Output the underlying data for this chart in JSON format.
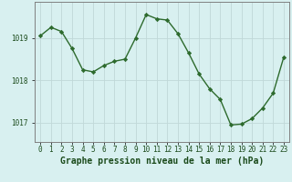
{
  "x": [
    0,
    1,
    2,
    3,
    4,
    5,
    6,
    7,
    8,
    9,
    10,
    11,
    12,
    13,
    14,
    15,
    16,
    17,
    18,
    19,
    20,
    21,
    22,
    23
  ],
  "y": [
    1019.05,
    1019.25,
    1019.15,
    1018.75,
    1018.25,
    1018.2,
    1018.35,
    1018.45,
    1018.5,
    1019.0,
    1019.55,
    1019.45,
    1019.42,
    1019.1,
    1018.65,
    1018.15,
    1017.8,
    1017.55,
    1016.95,
    1016.97,
    1017.1,
    1017.35,
    1017.7,
    1018.55
  ],
  "line_color": "#2d6a2d",
  "marker": "D",
  "marker_size": 2.2,
  "line_width": 1.0,
  "bg_color": "#d8f0f0",
  "grid_color": "#c0d8d8",
  "border_color": "#808080",
  "xlabel": "Graphe pression niveau de la mer (hPa)",
  "xlabel_color": "#1a4a1a",
  "xlabel_fontsize": 7.0,
  "tick_color": "#1a4a1a",
  "tick_fontsize": 5.5,
  "yticks": [
    1017,
    1018,
    1019
  ],
  "ylim": [
    1016.55,
    1019.85
  ],
  "xlim": [
    -0.5,
    23.5
  ],
  "xtick_labels": [
    "0",
    "1",
    "2",
    "3",
    "4",
    "5",
    "6",
    "7",
    "8",
    "9",
    "10",
    "11",
    "12",
    "13",
    "14",
    "15",
    "16",
    "17",
    "18",
    "19",
    "20",
    "21",
    "22",
    "23"
  ]
}
